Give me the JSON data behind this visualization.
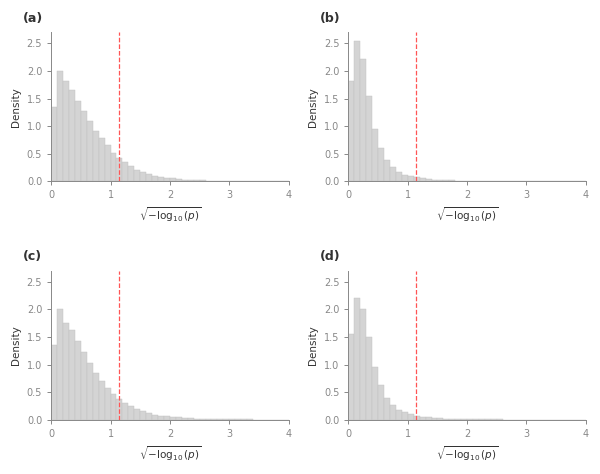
{
  "panels": [
    "(a)",
    "(b)",
    "(c)",
    "(d)"
  ],
  "vline_x": 1.1394,
  "xlim": [
    0,
    4
  ],
  "ylim": [
    0,
    2.7
  ],
  "yticks": [
    0.0,
    0.5,
    1.0,
    1.5,
    2.0,
    2.5
  ],
  "xticks": [
    0,
    1,
    2,
    3,
    4
  ],
  "xlabel": "$\\sqrt{-\\log_{10}(p)}$",
  "ylabel": "Density",
  "bar_color": "#d4d4d4",
  "bar_edgecolor": "#c0c0c0",
  "vline_color": "#ff5555",
  "figsize": [
    6.0,
    4.74
  ],
  "dpi": 100,
  "panel_label_fontsize": 9,
  "axis_label_fontsize": 7.5,
  "tick_fontsize": 7,
  "bin_width": 0.1,
  "hist_heights_a": [
    1.35,
    2.0,
    1.82,
    1.65,
    1.45,
    1.28,
    1.1,
    0.92,
    0.78,
    0.65,
    0.52,
    0.42,
    0.34,
    0.27,
    0.21,
    0.17,
    0.13,
    0.1,
    0.08,
    0.06,
    0.05,
    0.04,
    0.03,
    0.025,
    0.02,
    0.015,
    0.012,
    0.01,
    0.008,
    0.007,
    0.006,
    0.005,
    0.004,
    0.003,
    0.003,
    0.002,
    0.002,
    0.002,
    0.001,
    0.001
  ],
  "hist_heights_b": [
    1.82,
    2.55,
    2.22,
    1.55,
    0.95,
    0.6,
    0.38,
    0.25,
    0.17,
    0.12,
    0.09,
    0.07,
    0.05,
    0.04,
    0.03,
    0.025,
    0.02,
    0.015,
    0.012,
    0.01,
    0.008,
    0.006,
    0.005,
    0.004,
    0.003,
    0.003,
    0.002,
    0.002,
    0.001,
    0.001,
    0.001,
    0.001,
    0.001,
    0.0,
    0.0,
    0.0,
    0.0,
    0.0,
    0.0,
    0.0
  ],
  "hist_heights_c": [
    1.35,
    2.0,
    1.75,
    1.62,
    1.42,
    1.22,
    1.02,
    0.85,
    0.7,
    0.57,
    0.46,
    0.37,
    0.3,
    0.24,
    0.19,
    0.15,
    0.12,
    0.09,
    0.07,
    0.06,
    0.05,
    0.04,
    0.03,
    0.025,
    0.02,
    0.015,
    0.012,
    0.01,
    0.008,
    0.007,
    0.005,
    0.004,
    0.004,
    0.003,
    0.002,
    0.002,
    0.001,
    0.001,
    0.001,
    0.001
  ],
  "hist_heights_d": [
    1.55,
    2.2,
    2.0,
    1.5,
    0.95,
    0.62,
    0.4,
    0.27,
    0.18,
    0.13,
    0.1,
    0.07,
    0.055,
    0.042,
    0.032,
    0.025,
    0.02,
    0.015,
    0.012,
    0.01,
    0.008,
    0.006,
    0.005,
    0.004,
    0.003,
    0.003,
    0.002,
    0.002,
    0.001,
    0.001,
    0.001,
    0.001,
    0.0,
    0.0,
    0.0,
    0.0,
    0.0,
    0.0,
    0.0,
    0.0
  ]
}
